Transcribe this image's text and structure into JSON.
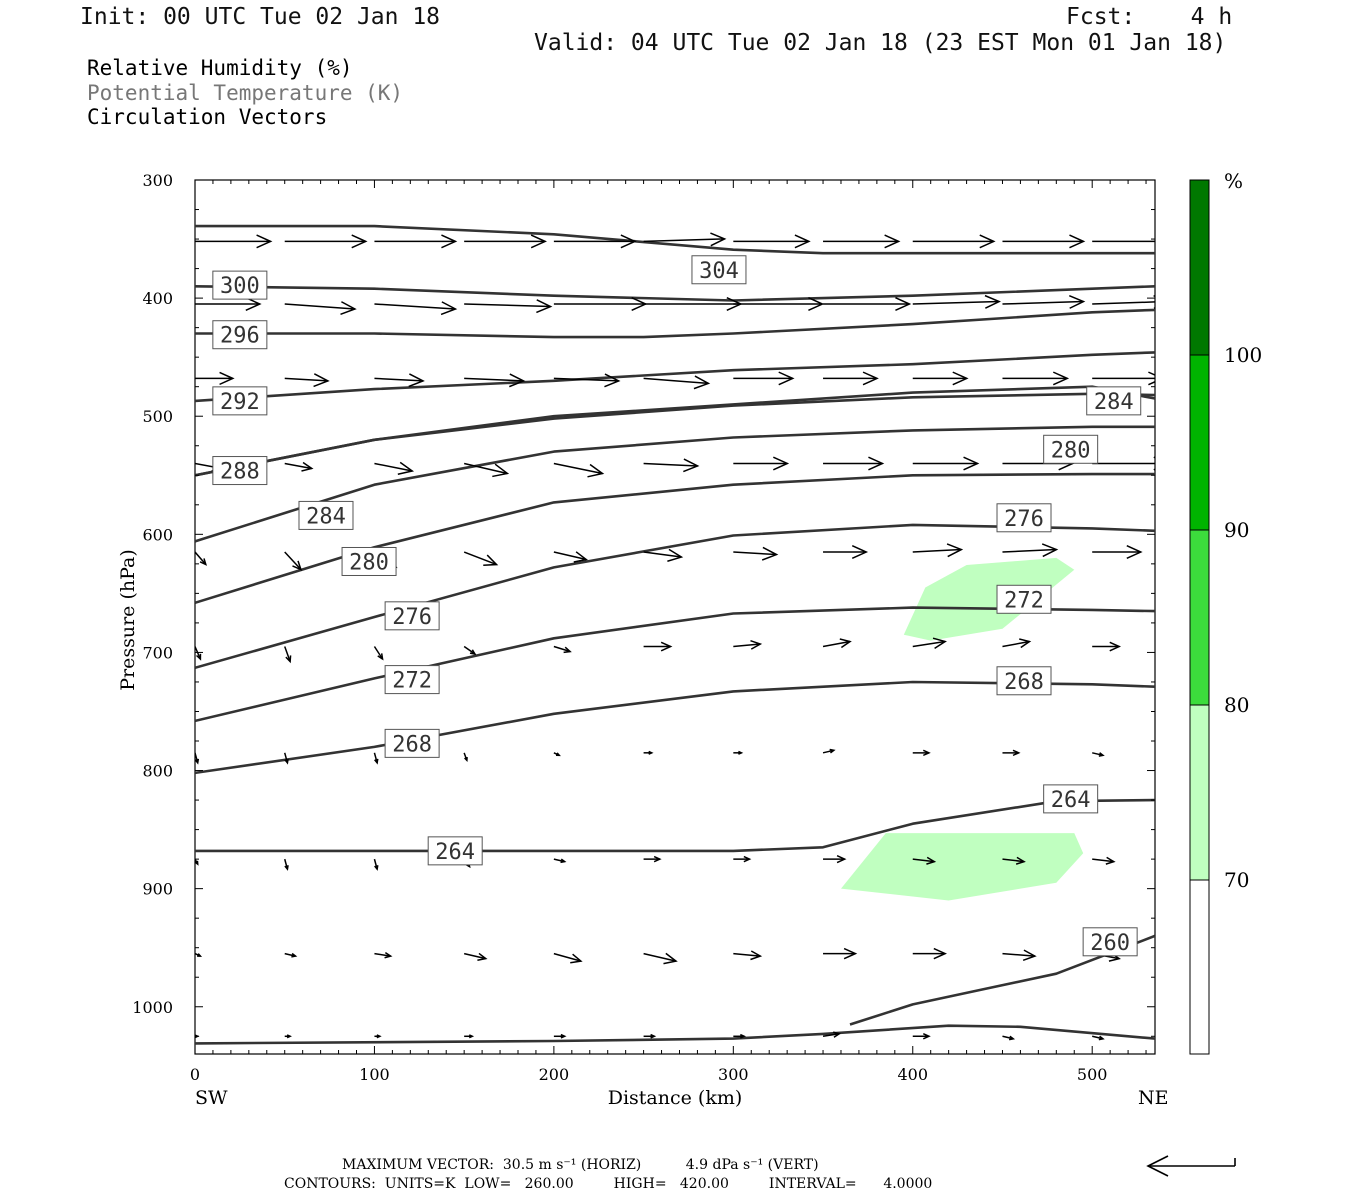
{
  "header": {
    "init": "Init: 00 UTC Tue 02 Jan 18",
    "fcst": "Fcst:    4 h",
    "valid": "Valid: 04 UTC Tue 02 Jan 18 (23 EST Mon 01 Jan 18)"
  },
  "legend": {
    "rh": "Relative Humidity (%)",
    "theta": "Potential Temperature (K)",
    "vectors": "Circulation Vectors"
  },
  "footer": {
    "max_vector": "MAXIMUM VECTOR:  30.5 m s⁻¹ (HORIZ)          4.9 dPa s⁻¹ (VERT)",
    "contours": "CONTOURS:  UNITS=K  LOW=   260.00         HIGH=   420.00         INTERVAL=      4.0000"
  },
  "colors": {
    "rh70": "#c0ffc0",
    "rh80": "#3cdc3c",
    "rh90": "#00b400",
    "rh100": "#007800",
    "contour": "#333333"
  },
  "chart_data": {
    "type": "cross-section",
    "xlabel": "Distance (km)",
    "ylabel": "Pressure (hPa)",
    "x_ticks": [
      "0",
      "100",
      "200",
      "300",
      "400",
      "500"
    ],
    "y_ticks": [
      "300",
      "400",
      "500",
      "600",
      "700",
      "800",
      "900",
      "1000"
    ],
    "xlim": [
      0,
      535
    ],
    "ylim": [
      300,
      1040
    ],
    "y_inverted": true,
    "x_end_labels": {
      "left": "SW",
      "right": "NE"
    },
    "colorbar": {
      "unit": "%",
      "levels": [
        "100",
        "90",
        "80",
        "70"
      ]
    },
    "theta_contours": [
      {
        "label": "304",
        "label_pos": [
          292,
          376
        ],
        "points": [
          [
            0,
            339
          ],
          [
            100,
            339
          ],
          [
            200,
            346
          ],
          [
            300,
            359
          ],
          [
            350,
            362
          ],
          [
            450,
            362
          ],
          [
            535,
            362
          ]
        ]
      },
      {
        "label": "300",
        "label_pos": [
          25,
          389
        ],
        "points": [
          [
            0,
            390
          ],
          [
            100,
            392
          ],
          [
            200,
            398
          ],
          [
            300,
            402
          ],
          [
            400,
            398
          ],
          [
            500,
            392
          ],
          [
            535,
            390
          ]
        ]
      },
      {
        "label": "296",
        "label_pos": [
          25,
          431
        ],
        "points": [
          [
            0,
            430
          ],
          [
            100,
            430
          ],
          [
            200,
            433
          ],
          [
            250,
            433
          ],
          [
            300,
            430
          ],
          [
            400,
            422
          ],
          [
            500,
            412
          ],
          [
            535,
            410
          ]
        ]
      },
      {
        "label": "292",
        "label_pos": [
          25,
          487
        ],
        "points": [
          [
            0,
            487
          ],
          [
            100,
            477
          ],
          [
            200,
            470
          ],
          [
            300,
            461
          ],
          [
            400,
            456
          ],
          [
            500,
            448
          ],
          [
            535,
            446
          ]
        ]
      },
      {
        "label": "284",
        "label_pos": [
          512,
          487
        ],
        "points": [
          [
            0,
            550
          ],
          [
            100,
            520
          ],
          [
            200,
            500
          ],
          [
            300,
            490
          ],
          [
            400,
            480
          ],
          [
            500,
            475
          ],
          [
            535,
            485
          ]
        ]
      },
      {
        "label": "288",
        "label_pos": [
          25,
          546
        ],
        "points": [
          [
            0,
            550
          ],
          [
            100,
            520
          ],
          [
            200,
            502
          ],
          [
            300,
            491
          ],
          [
            400,
            484
          ],
          [
            500,
            481
          ],
          [
            535,
            482
          ]
        ]
      },
      {
        "label": "280",
        "label_pos": [
          488,
          528
        ],
        "points": [
          [
            0,
            606
          ],
          [
            100,
            558
          ],
          [
            200,
            530
          ],
          [
            300,
            518
          ],
          [
            400,
            512
          ],
          [
            500,
            509
          ],
          [
            535,
            509
          ]
        ]
      },
      {
        "label": "284",
        "label_pos": [
          73,
          584
        ],
        "points": [
          [
            0,
            606
          ],
          [
            100,
            558
          ],
          [
            200,
            530
          ],
          [
            300,
            518
          ],
          [
            400,
            512
          ],
          [
            500,
            509
          ],
          [
            535,
            509
          ]
        ]
      },
      {
        "label": "276",
        "label_pos": [
          462,
          586
        ],
        "points": [
          [
            0,
            658
          ],
          [
            100,
            611
          ],
          [
            200,
            573
          ],
          [
            300,
            558
          ],
          [
            400,
            550
          ],
          [
            500,
            549
          ],
          [
            535,
            549
          ]
        ]
      },
      {
        "label": "280",
        "label_pos": [
          97,
          623
        ],
        "points": [
          [
            0,
            658
          ],
          [
            100,
            611
          ],
          [
            200,
            573
          ],
          [
            300,
            558
          ],
          [
            400,
            550
          ],
          [
            500,
            549
          ],
          [
            535,
            549
          ]
        ]
      },
      {
        "label": "272",
        "label_pos": [
          462,
          655
        ],
        "points": [
          [
            0,
            713
          ],
          [
            100,
            670
          ],
          [
            200,
            628
          ],
          [
            300,
            601
          ],
          [
            400,
            592
          ],
          [
            500,
            595
          ],
          [
            535,
            597
          ]
        ]
      },
      {
        "label": "276",
        "label_pos": [
          121,
          669
        ],
        "points": [
          [
            0,
            713
          ],
          [
            100,
            670
          ],
          [
            200,
            628
          ],
          [
            300,
            601
          ],
          [
            400,
            592
          ],
          [
            500,
            595
          ],
          [
            535,
            597
          ]
        ]
      },
      {
        "label": "268",
        "label_pos": [
          462,
          724
        ],
        "points": [
          [
            0,
            758
          ],
          [
            100,
            722
          ],
          [
            200,
            688
          ],
          [
            300,
            667
          ],
          [
            400,
            662
          ],
          [
            500,
            664
          ],
          [
            535,
            665
          ]
        ]
      },
      {
        "label": "272",
        "label_pos": [
          121,
          723
        ],
        "points": [
          [
            0,
            758
          ],
          [
            100,
            722
          ],
          [
            200,
            688
          ],
          [
            300,
            667
          ],
          [
            400,
            662
          ],
          [
            500,
            664
          ],
          [
            535,
            665
          ]
        ]
      },
      {
        "label": "268",
        "label_pos": [
          121,
          777
        ],
        "points": [
          [
            0,
            802
          ],
          [
            100,
            780
          ],
          [
            200,
            752
          ],
          [
            300,
            733
          ],
          [
            400,
            725
          ],
          [
            500,
            727
          ],
          [
            535,
            729
          ]
        ]
      },
      {
        "label": "264",
        "label_pos": [
          488,
          824
        ],
        "points": [
          [
            0,
            868
          ],
          [
            100,
            868
          ],
          [
            200,
            868
          ],
          [
            300,
            868
          ],
          [
            350,
            865
          ],
          [
            400,
            845
          ],
          [
            480,
            826
          ],
          [
            535,
            825
          ]
        ]
      },
      {
        "label": "264",
        "label_pos": [
          145,
          868
        ],
        "points": [
          [
            0,
            868
          ],
          [
            100,
            868
          ],
          [
            200,
            868
          ],
          [
            300,
            868
          ],
          [
            350,
            865
          ],
          [
            400,
            845
          ],
          [
            480,
            826
          ],
          [
            535,
            825
          ]
        ]
      },
      {
        "label": "260",
        "label_pos": [
          510,
          945
        ],
        "points": [
          [
            365,
            1015
          ],
          [
            400,
            998
          ],
          [
            440,
            985
          ],
          [
            480,
            972
          ],
          [
            535,
            940
          ]
        ]
      },
      {
        "label": "",
        "label_pos": null,
        "points": [
          [
            0,
            1031
          ],
          [
            200,
            1029
          ],
          [
            300,
            1027
          ],
          [
            350,
            1023
          ],
          [
            420,
            1016
          ],
          [
            460,
            1017
          ],
          [
            535,
            1027
          ]
        ]
      }
    ],
    "rh_regions": [
      {
        "level": "70-80",
        "points": [
          [
            407,
            645
          ],
          [
            430,
            626
          ],
          [
            480,
            620
          ],
          [
            490,
            630
          ],
          [
            450,
            680
          ],
          [
            410,
            690
          ],
          [
            395,
            685
          ]
        ]
      },
      {
        "level": "70-80",
        "points": [
          [
            385,
            853
          ],
          [
            490,
            853
          ],
          [
            495,
            870
          ],
          [
            480,
            895
          ],
          [
            420,
            910
          ],
          [
            360,
            900
          ]
        ]
      }
    ],
    "vectors": [
      {
        "p": 352,
        "x": [
          0,
          50,
          100,
          150,
          200,
          250,
          300,
          350,
          400,
          450,
          500
        ],
        "u": [
          28,
          30,
          30,
          30,
          30,
          30,
          28,
          28,
          30,
          30,
          30
        ],
        "w": [
          0,
          0,
          0,
          0,
          0,
          -1,
          0,
          0,
          0,
          0,
          0
        ]
      },
      {
        "p": 405,
        "x": [
          0,
          50,
          100,
          150,
          200,
          250,
          300,
          350,
          400,
          450,
          500
        ],
        "u": [
          24,
          26,
          30,
          32,
          34,
          36,
          33,
          32,
          32,
          30,
          28
        ],
        "w": [
          0,
          2,
          2,
          1,
          0,
          0,
          0,
          0,
          -1,
          -1,
          -1
        ]
      },
      {
        "p": 468,
        "x": [
          0,
          50,
          100,
          150,
          200,
          250,
          300,
          350,
          400,
          450,
          500
        ],
        "u": [
          14,
          16,
          18,
          22,
          24,
          24,
          22,
          20,
          20,
          24,
          26
        ],
        "w": [
          0,
          1,
          1,
          1,
          1,
          2,
          0,
          0,
          0,
          0,
          0
        ]
      },
      {
        "p": 540,
        "x": [
          0,
          50,
          100,
          150,
          200,
          250,
          300,
          350,
          400,
          450,
          500
        ],
        "u": [
          10,
          10,
          14,
          16,
          18,
          20,
          20,
          22,
          24,
          26,
          28
        ],
        "w": [
          2,
          2,
          3,
          4,
          4,
          1,
          0,
          0,
          0,
          0,
          0
        ]
      },
      {
        "p": 615,
        "x": [
          0,
          50,
          100,
          150,
          200,
          250,
          300,
          350,
          400,
          450,
          500
        ],
        "u": [
          4,
          6,
          8,
          12,
          12,
          14,
          16,
          16,
          18,
          20,
          18
        ],
        "w": [
          5,
          7,
          6,
          5,
          3,
          2,
          1,
          0,
          -1,
          -1,
          0
        ]
      },
      {
        "p": 695,
        "x": [
          0,
          50,
          100,
          150,
          200,
          250,
          300,
          350,
          400,
          450,
          500
        ],
        "u": [
          2,
          2,
          3,
          4,
          6,
          10,
          10,
          10,
          12,
          10,
          10
        ],
        "w": [
          5,
          6,
          5,
          3,
          2,
          0,
          -1,
          -2,
          -2,
          -2,
          0
        ]
      },
      {
        "p": 785,
        "x": [
          0,
          50,
          100,
          150,
          200,
          250,
          300,
          350,
          400,
          450,
          500
        ],
        "u": [
          1,
          1,
          1,
          1,
          2,
          3,
          3,
          4,
          6,
          6,
          4
        ],
        "w": [
          4,
          4,
          4,
          3,
          1,
          0,
          0,
          -1,
          0,
          0,
          1
        ]
      },
      {
        "p": 875,
        "x": [
          0,
          50,
          100,
          150,
          200,
          250,
          300,
          350,
          400,
          450,
          500
        ],
        "u": [
          1,
          1,
          1,
          2,
          4,
          6,
          6,
          8,
          8,
          8,
          8
        ],
        "w": [
          2,
          4,
          4,
          3,
          1,
          0,
          0,
          0,
          1,
          1,
          1
        ]
      },
      {
        "p": 955,
        "x": [
          0,
          50,
          100,
          150,
          200,
          250,
          300,
          350,
          400,
          450,
          500
        ],
        "u": [
          2,
          4,
          6,
          8,
          10,
          12,
          10,
          12,
          12,
          12,
          10
        ],
        "w": [
          1,
          1,
          1,
          2,
          3,
          3,
          1,
          0,
          0,
          1,
          2
        ]
      },
      {
        "p": 1025,
        "x": [
          0,
          50,
          100,
          150,
          200,
          250,
          300,
          350,
          400,
          450,
          500
        ],
        "u": [
          1,
          2,
          2,
          3,
          4,
          4,
          4,
          6,
          6,
          4,
          4
        ],
        "w": [
          0,
          0,
          0,
          0,
          0,
          0,
          0,
          -1,
          0,
          1,
          1
        ]
      }
    ]
  }
}
